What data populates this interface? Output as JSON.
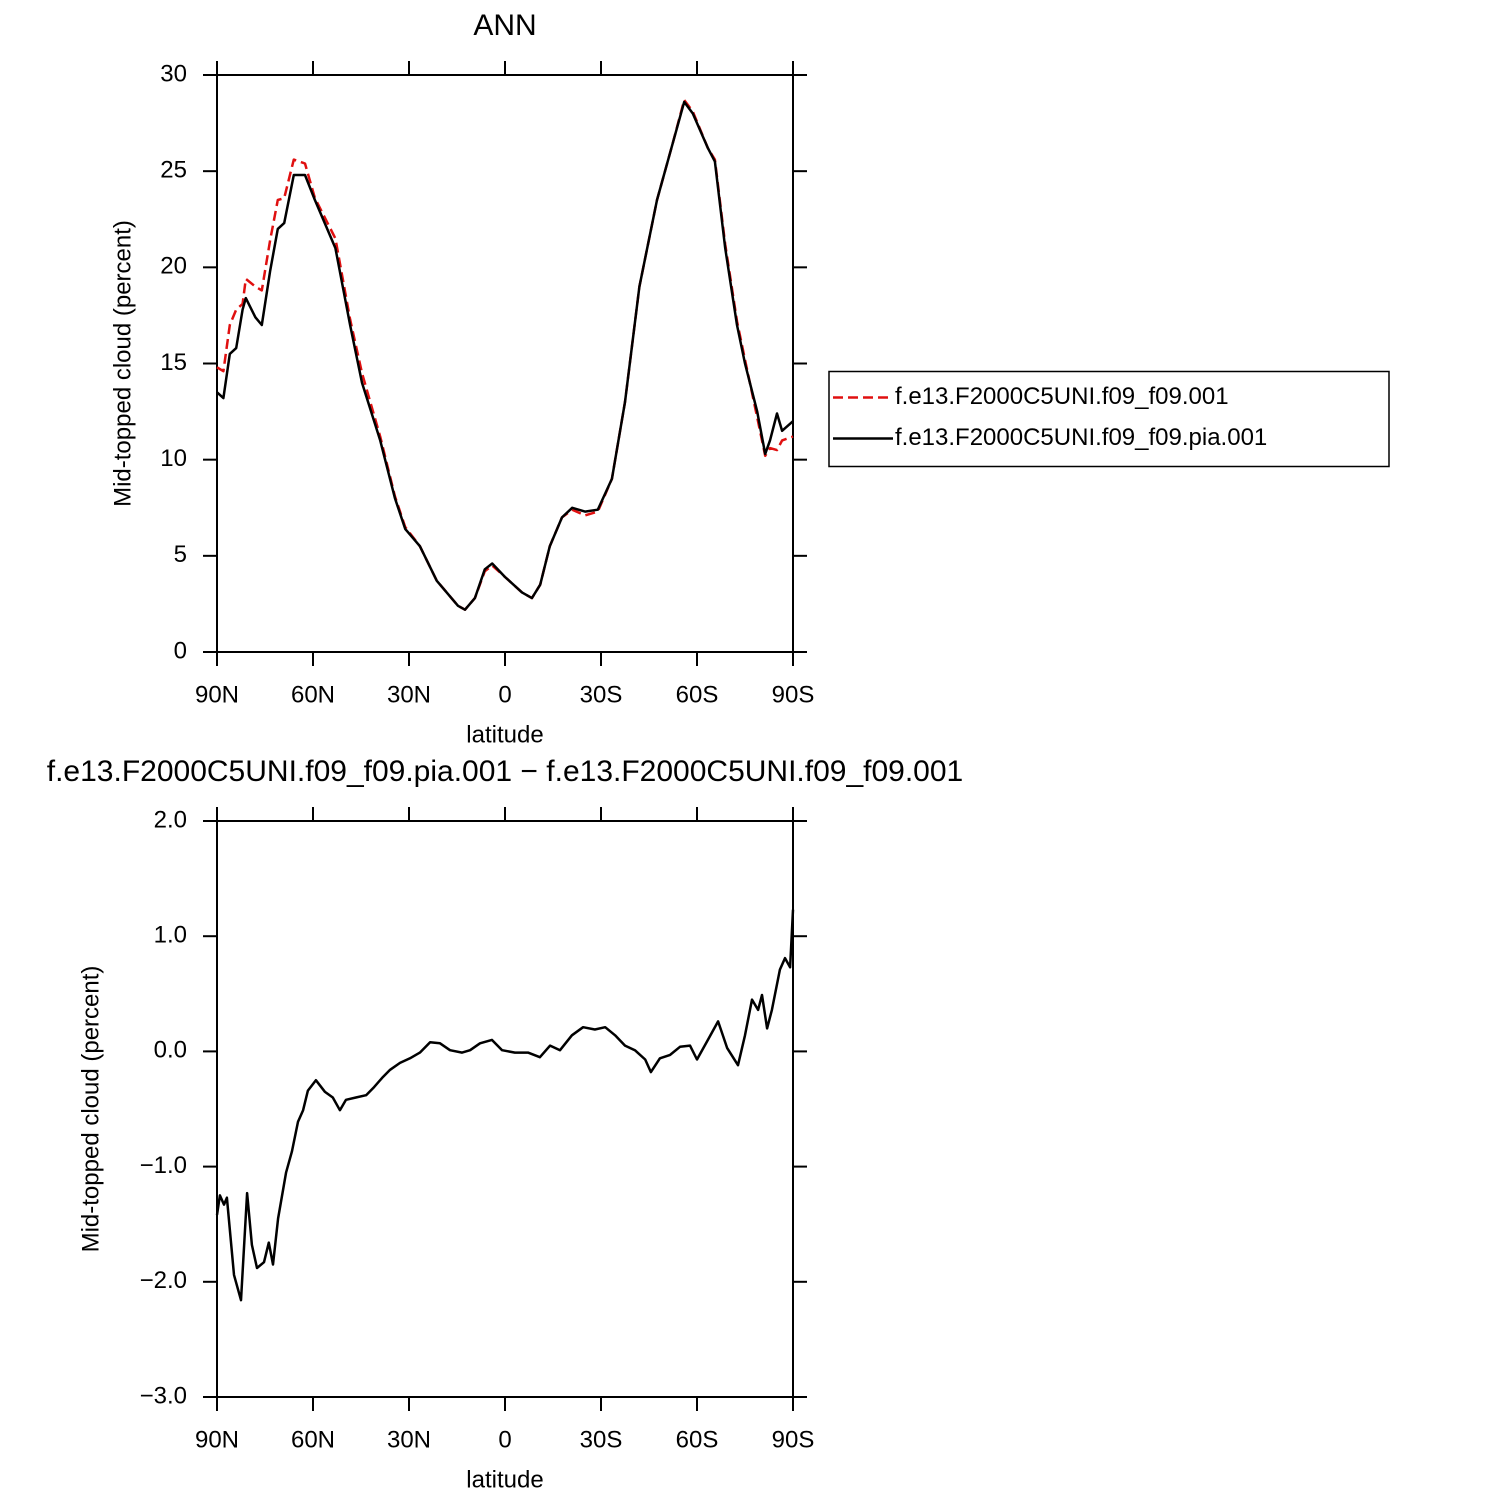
{
  "chart_data": [
    {
      "type": "line",
      "title": "ANN",
      "x_label": "latitude",
      "y_label": "Mid-topped cloud (percent)",
      "x": [
        90,
        88,
        86,
        84,
        82,
        81,
        78,
        76,
        73.4,
        71,
        69,
        66,
        62.5,
        59.4,
        53,
        48.4,
        44.7,
        39,
        34.4,
        31.2,
        26.6,
        21.3,
        14.7,
        12.5,
        9.4,
        6.3,
        4,
        0,
        -5.3,
        -8.4,
        -11,
        -14,
        -17.8,
        -21,
        -25,
        -29,
        -33.4,
        -37.5,
        -42,
        -47.5,
        -52.5,
        -56,
        -58.7,
        -63.4,
        -65.6,
        -68.8,
        -72.5,
        -75,
        -78.8,
        -81.3,
        -82.8,
        -85,
        -86.6,
        -90
      ],
      "series": [
        {
          "name": "f.e13.F2000C5UNI.f09_f09.001",
          "color": "#e01010",
          "line_style": "dashed",
          "values": [
            14.8,
            14.6,
            17,
            17.8,
            18.1,
            19.4,
            19,
            18.8,
            21.4,
            23.5,
            23.6,
            25.6,
            25.4,
            23.6,
            21.5,
            17.3,
            14.5,
            11.2,
            8.1,
            6.5,
            5.5,
            3.7,
            2.4,
            2.2,
            2.8,
            4.2,
            4.5,
            3.9,
            3.1,
            2.8,
            3.5,
            5.5,
            7,
            7.4,
            7.1,
            7.3,
            9,
            13,
            19,
            23.5,
            26.5,
            28.7,
            28.1,
            26.2,
            25.6,
            21.2,
            17.2,
            15.2,
            12.2,
            10.2,
            10.6,
            10.5,
            11,
            11.2
          ]
        },
        {
          "name": "f.e13.F2000C5UNI.f09_f09.pia.001",
          "color": "#000000",
          "line_style": "solid",
          "values": [
            13.5,
            13.2,
            15.5,
            15.8,
            17.8,
            18.4,
            17.4,
            17,
            19.8,
            22,
            22.3,
            24.8,
            24.8,
            23.5,
            21,
            17,
            14,
            11,
            8,
            6.4,
            5.5,
            3.7,
            2.4,
            2.2,
            2.8,
            4.3,
            4.6,
            3.9,
            3.1,
            2.8,
            3.5,
            5.5,
            7,
            7.5,
            7.3,
            7.4,
            9,
            13,
            19,
            23.5,
            26.5,
            28.6,
            28,
            26.2,
            25.5,
            21,
            17,
            15,
            12.5,
            10.3,
            11,
            12.4,
            11.5,
            12
          ]
        }
      ],
      "xlim": [
        90,
        -90
      ],
      "xticks": [
        {
          "value": 90,
          "label": "90N"
        },
        {
          "value": 60,
          "label": "60N"
        },
        {
          "value": 30,
          "label": "30N"
        },
        0,
        {
          "value": -30,
          "label": "30S"
        },
        {
          "value": -60,
          "label": "60S"
        },
        {
          "value": -90,
          "label": "90S"
        }
      ],
      "ylim": [
        0,
        30
      ],
      "yticks": [
        0,
        5,
        10,
        15,
        20,
        25,
        30
      ],
      "legend": "right"
    },
    {
      "type": "line",
      "title": "f.e13.F2000C5UNI.f09_f09.pia.001 − f.e13.F2000C5UNI.f09_f09.001",
      "x_label": "latitude",
      "y_label": "Mid-topped cloud (percent)",
      "x": [
        90,
        89.1,
        87.8,
        86.9,
        84.7,
        82.5,
        80.6,
        79.1,
        77.5,
        75.3,
        73.8,
        72.5,
        70.9,
        68.4,
        66.6,
        64.7,
        63.1,
        61.6,
        59.1,
        56.3,
        53.8,
        51.6,
        49.7,
        46.6,
        43.4,
        40.9,
        38.4,
        35.9,
        32.8,
        29.7,
        26.6,
        23.4,
        20.3,
        17.2,
        13.4,
        10.9,
        7.8,
        4.1,
        0.9,
        -3.1,
        -7.2,
        -10.9,
        -14.1,
        -17.2,
        -20.9,
        -24.4,
        -28.1,
        -31.3,
        -34.4,
        -37.5,
        -40.6,
        -43.8,
        -45.6,
        -48.4,
        -51.6,
        -54.7,
        -57.8,
        -60,
        -63.4,
        -66.6,
        -69.4,
        -72.8,
        -75,
        -77.2,
        -79.1,
        -80.3,
        -81.9,
        -83.4,
        -85.9,
        -87.5,
        -89.1,
        -90
      ],
      "series": [
        {
          "color": "#000000",
          "line_style": "solid",
          "values": [
            -1.42,
            -1.25,
            -1.33,
            -1.27,
            -1.94,
            -2.16,
            -1.23,
            -1.68,
            -1.88,
            -1.83,
            -1.66,
            -1.85,
            -1.45,
            -1.05,
            -0.87,
            -0.61,
            -0.51,
            -0.34,
            -0.25,
            -0.35,
            -0.4,
            -0.51,
            -0.42,
            -0.4,
            -0.38,
            -0.31,
            -0.23,
            -0.16,
            -0.1,
            -0.06,
            -0.01,
            0.08,
            0.07,
            0.01,
            -0.01,
            0.01,
            0.07,
            0.1,
            0.01,
            -0.01,
            -0.01,
            -0.05,
            0.05,
            0.01,
            0.14,
            0.21,
            0.19,
            0.21,
            0.14,
            0.05,
            0.01,
            -0.07,
            -0.18,
            -0.06,
            -0.03,
            0.04,
            0.05,
            -0.07,
            0.1,
            0.26,
            0.03,
            -0.12,
            0.14,
            0.45,
            0.36,
            0.49,
            0.2,
            0.36,
            0.71,
            0.81,
            0.73,
            1.23
          ]
        }
      ],
      "xlim": [
        90,
        -90
      ],
      "xticks": [
        {
          "value": 90,
          "label": "90N"
        },
        {
          "value": 60,
          "label": "60N"
        },
        {
          "value": 30,
          "label": "30N"
        },
        0,
        {
          "value": -30,
          "label": "30S"
        },
        {
          "value": -60,
          "label": "60S"
        },
        {
          "value": -90,
          "label": "90S"
        }
      ],
      "ylim": [
        -3,
        2
      ],
      "yticks": [
        {
          "value": -3,
          "label": "−3.0"
        },
        {
          "value": -2,
          "label": "−2.0"
        },
        {
          "value": -1,
          "label": "−1.0"
        },
        {
          "value": 0,
          "label": "0.0"
        },
        {
          "value": 1,
          "label": "1.0"
        },
        {
          "value": 2,
          "label": "2.0"
        }
      ]
    }
  ]
}
